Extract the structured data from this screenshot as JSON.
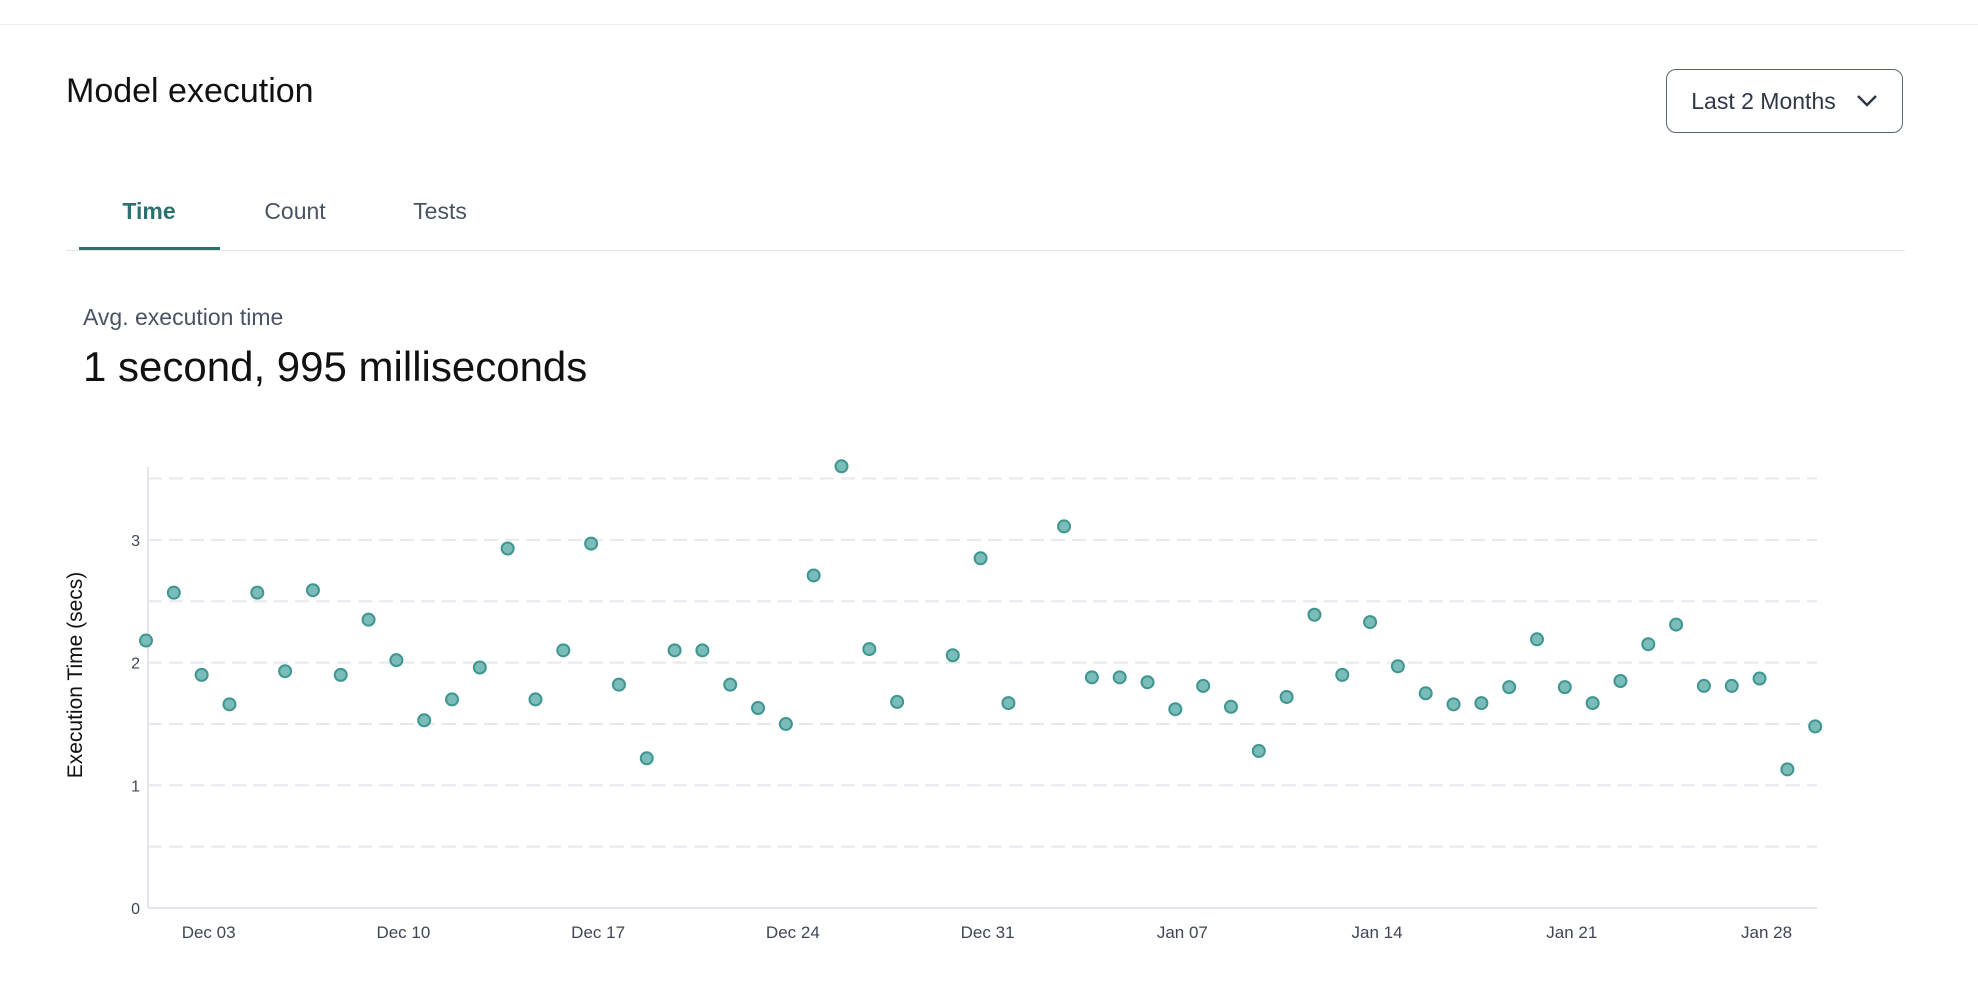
{
  "header": {
    "title": "Model execution"
  },
  "range_select": {
    "selected": "Last 2 Months",
    "icon": "chevron-down-icon"
  },
  "tabs": [
    {
      "label": "Time",
      "active": true
    },
    {
      "label": "Count",
      "active": false
    },
    {
      "label": "Tests",
      "active": false
    }
  ],
  "summary": {
    "label": "Avg. execution time",
    "value": "1 second, 995 milliseconds"
  },
  "colors": {
    "accent": "#2c7170",
    "point_fill": "#7abcb8",
    "point_stroke": "#3f9591",
    "grid": "#e6e8ee"
  },
  "chart_data": {
    "type": "scatter",
    "ylabel": "Execution Time (secs)",
    "xlabel": "",
    "ylim": [
      0,
      3.6
    ],
    "yticks": [
      0,
      1,
      2,
      3
    ],
    "grid": "horizontal dashed every 0.5",
    "xticks": [
      {
        "date": "2023-12-03",
        "label": "Dec 03"
      },
      {
        "date": "2023-12-10",
        "label": "Dec 10"
      },
      {
        "date": "2023-12-17",
        "label": "Dec 17"
      },
      {
        "date": "2023-12-24",
        "label": "Dec 24"
      },
      {
        "date": "2023-12-31",
        "label": "Dec 31"
      },
      {
        "date": "2024-01-07",
        "label": "Jan 07"
      },
      {
        "date": "2024-01-14",
        "label": "Jan 14"
      },
      {
        "date": "2024-01-21",
        "label": "Jan 21"
      },
      {
        "date": "2024-01-28",
        "label": "Jan 28"
      }
    ],
    "points": [
      [
        "2023-12-01",
        2.18
      ],
      [
        "2023-12-02",
        2.57
      ],
      [
        "2023-12-03",
        1.9
      ],
      [
        "2023-12-04",
        1.66
      ],
      [
        "2023-12-05",
        2.57
      ],
      [
        "2023-12-06",
        1.93
      ],
      [
        "2023-12-07",
        2.59
      ],
      [
        "2023-12-08",
        1.9
      ],
      [
        "2023-12-09",
        2.35
      ],
      [
        "2023-12-10",
        2.02
      ],
      [
        "2023-12-11",
        1.53
      ],
      [
        "2023-12-12",
        1.7
      ],
      [
        "2023-12-13",
        1.96
      ],
      [
        "2023-12-14",
        2.93
      ],
      [
        "2023-12-15",
        1.7
      ],
      [
        "2023-12-16",
        2.1
      ],
      [
        "2023-12-17",
        2.97
      ],
      [
        "2023-12-18",
        1.82
      ],
      [
        "2023-12-19",
        1.22
      ],
      [
        "2023-12-20",
        2.1
      ],
      [
        "2023-12-21",
        2.1
      ],
      [
        "2023-12-22",
        1.82
      ],
      [
        "2023-12-23",
        1.63
      ],
      [
        "2023-12-24",
        1.5
      ],
      [
        "2023-12-25",
        2.71
      ],
      [
        "2023-12-26",
        3.6
      ],
      [
        "2023-12-27",
        2.11
      ],
      [
        "2023-12-28",
        1.68
      ],
      [
        "2023-12-30",
        2.06
      ],
      [
        "2023-12-31",
        2.85
      ],
      [
        "2024-01-01",
        1.67
      ],
      [
        "2024-01-03",
        3.11
      ],
      [
        "2024-01-04",
        1.88
      ],
      [
        "2024-01-05",
        1.88
      ],
      [
        "2024-01-06",
        1.84
      ],
      [
        "2024-01-07",
        1.62
      ],
      [
        "2024-01-08",
        1.81
      ],
      [
        "2024-01-09",
        1.64
      ],
      [
        "2024-01-10",
        1.28
      ],
      [
        "2024-01-11",
        1.72
      ],
      [
        "2024-01-12",
        2.39
      ],
      [
        "2024-01-13",
        1.9
      ],
      [
        "2024-01-14",
        2.33
      ],
      [
        "2024-01-15",
        1.97
      ],
      [
        "2024-01-16",
        1.75
      ],
      [
        "2024-01-17",
        1.66
      ],
      [
        "2024-01-18",
        1.67
      ],
      [
        "2024-01-19",
        1.8
      ],
      [
        "2024-01-20",
        2.19
      ],
      [
        "2024-01-21",
        1.8
      ],
      [
        "2024-01-22",
        1.67
      ],
      [
        "2024-01-23",
        1.85
      ],
      [
        "2024-01-24",
        2.15
      ],
      [
        "2024-01-25",
        2.31
      ],
      [
        "2024-01-26",
        1.81
      ],
      [
        "2024-01-27",
        1.81
      ],
      [
        "2024-01-28",
        1.87
      ],
      [
        "2024-01-29",
        1.13
      ],
      [
        "2024-01-30",
        1.48
      ]
    ]
  }
}
